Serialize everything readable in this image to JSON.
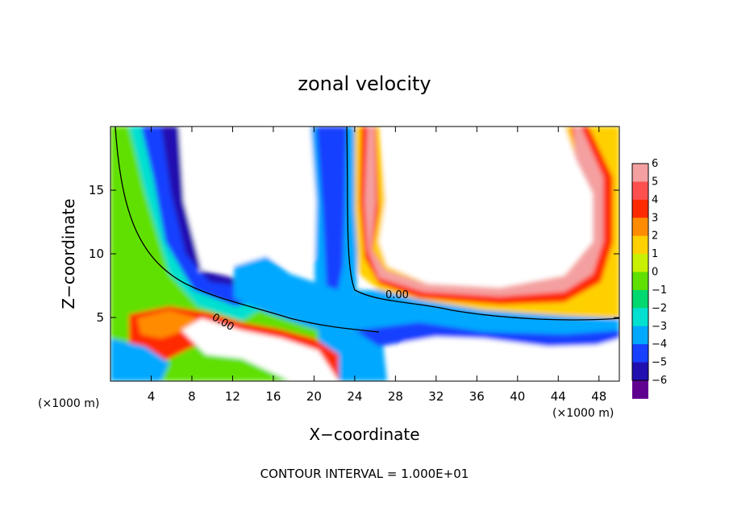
{
  "chart_data": {
    "type": "heatmap",
    "title": "zonal velocity",
    "xlabel": "X−coordinate",
    "ylabel": "Z−coordinate",
    "x_unit": "(×1000 m)",
    "y_unit": "(×1000 m)",
    "xlim": [
      0,
      50
    ],
    "ylim": [
      0,
      20
    ],
    "x_ticks": [
      4,
      8,
      12,
      16,
      20,
      24,
      28,
      32,
      36,
      40,
      44,
      48
    ],
    "y_ticks": [
      5,
      10,
      15
    ],
    "x_tick_labels": [
      "4",
      "8",
      "12",
      "16",
      "20",
      "24",
      "28",
      "32",
      "36",
      "40",
      "44",
      "48"
    ],
    "y_tick_labels": [
      "5",
      "10",
      "15"
    ],
    "colorbar": {
      "levels": [
        6,
        5,
        4,
        3,
        2,
        1,
        0,
        -1,
        -2,
        -3,
        -4,
        -5,
        -6
      ],
      "labels": [
        "6",
        "5",
        "4",
        "3",
        "2",
        "1",
        "0",
        "−1",
        "−2",
        "−3",
        "−4",
        "−5",
        "−6"
      ],
      "colors": [
        "#f4a0a0",
        "#ff5050",
        "#ff2a00",
        "#ff8c00",
        "#ffd000",
        "#c8f000",
        "#60e000",
        "#00d870",
        "#00e0d0",
        "#00a8ff",
        "#1840ff",
        "#2010b0",
        "#600090"
      ]
    },
    "contour_labels": [
      "0.00",
      "0.00"
    ],
    "contour_interval_text": "CONTOUR INTERVAL =  1.000E+01",
    "grid": false
  }
}
